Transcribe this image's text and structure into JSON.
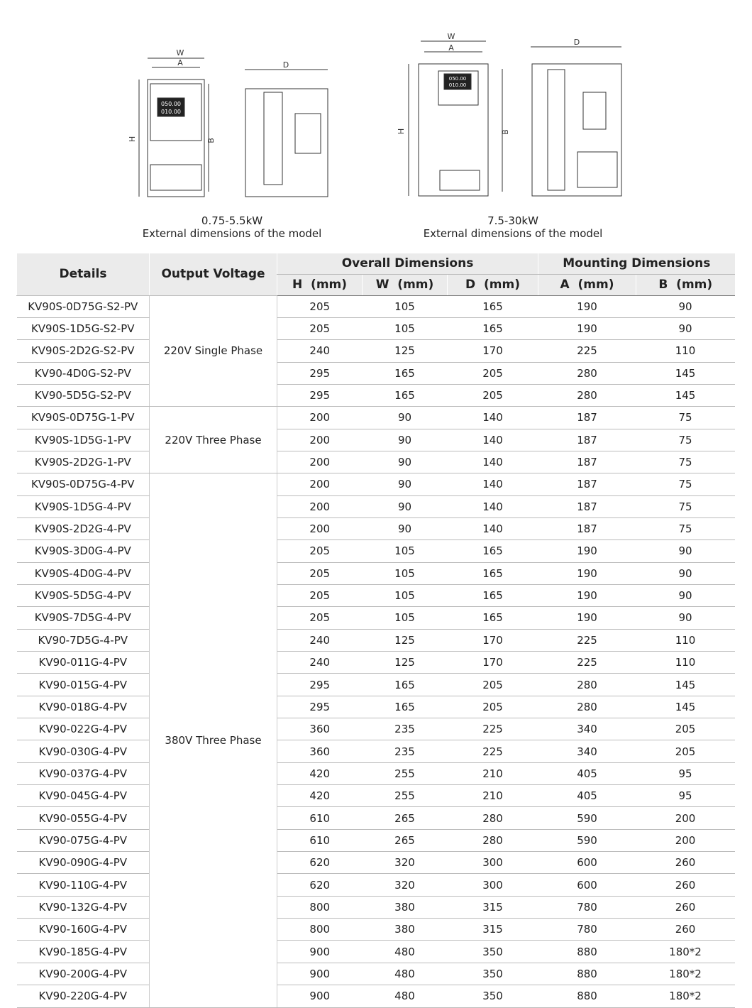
{
  "figures": [
    {
      "power": "0.75-5.5kW",
      "caption": "External dimensions of the model",
      "labels": {
        "W": "W",
        "A": "A",
        "H": "H",
        "B": "B",
        "D": "D"
      },
      "display": [
        "050.00",
        "010.00"
      ]
    },
    {
      "power": "7.5-30kW",
      "caption": "External dimensions of the model",
      "labels": {
        "W": "W",
        "A": "A",
        "H": "H",
        "B": "B",
        "D": "D"
      },
      "display": [
        "050.00",
        "010.00"
      ]
    }
  ],
  "table": {
    "header": {
      "details": "Details",
      "voltage": "Output Voltage",
      "overall": "Overall Dimensions",
      "mounting": "Mounting Dimensions",
      "columns": [
        "H  (mm)",
        "W  (mm)",
        "D  (mm)",
        "A  (mm)",
        "B  (mm)"
      ]
    },
    "groups": [
      {
        "voltage": "220V Single Phase",
        "rows": [
          [
            "KV90S-0D75G-S2-PV",
            205,
            105,
            165,
            190,
            90
          ],
          [
            "KV90S-1D5G-S2-PV",
            205,
            105,
            165,
            190,
            90
          ],
          [
            "KV90S-2D2G-S2-PV",
            240,
            125,
            170,
            225,
            110
          ],
          [
            "KV90-4D0G-S2-PV",
            295,
            165,
            205,
            280,
            145
          ],
          [
            "KV90-5D5G-S2-PV",
            295,
            165,
            205,
            280,
            145
          ]
        ]
      },
      {
        "voltage": "220V Three Phase",
        "rows": [
          [
            "KV90S-0D75G-1-PV",
            200,
            90,
            140,
            187,
            75
          ],
          [
            "KV90S-1D5G-1-PV",
            200,
            90,
            140,
            187,
            75
          ],
          [
            "KV90S-2D2G-1-PV",
            200,
            90,
            140,
            187,
            75
          ]
        ]
      },
      {
        "voltage": "380V Three Phase",
        "rows": [
          [
            "KV90S-0D75G-4-PV",
            200,
            90,
            140,
            187,
            75
          ],
          [
            "KV90S-1D5G-4-PV",
            200,
            90,
            140,
            187,
            75
          ],
          [
            "KV90S-2D2G-4-PV",
            200,
            90,
            140,
            187,
            75
          ],
          [
            "KV90S-3D0G-4-PV",
            205,
            105,
            165,
            190,
            90
          ],
          [
            "KV90S-4D0G-4-PV",
            205,
            105,
            165,
            190,
            90
          ],
          [
            "KV90S-5D5G-4-PV",
            205,
            105,
            165,
            190,
            90
          ],
          [
            "KV90S-7D5G-4-PV",
            205,
            105,
            165,
            190,
            90
          ],
          [
            "KV90-7D5G-4-PV",
            240,
            125,
            170,
            225,
            110
          ],
          [
            "KV90-011G-4-PV",
            240,
            125,
            170,
            225,
            110
          ],
          [
            "KV90-015G-4-PV",
            295,
            165,
            205,
            280,
            145
          ],
          [
            "KV90-018G-4-PV",
            295,
            165,
            205,
            280,
            145
          ],
          [
            "KV90-022G-4-PV",
            360,
            235,
            225,
            340,
            205
          ],
          [
            "KV90-030G-4-PV",
            360,
            235,
            225,
            340,
            205
          ],
          [
            "KV90-037G-4-PV",
            420,
            255,
            210,
            405,
            95
          ],
          [
            "KV90-045G-4-PV",
            420,
            255,
            210,
            405,
            95
          ],
          [
            "KV90-055G-4-PV",
            610,
            265,
            280,
            590,
            200
          ],
          [
            "KV90-075G-4-PV",
            610,
            265,
            280,
            590,
            200
          ],
          [
            "KV90-090G-4-PV",
            620,
            320,
            300,
            600,
            260
          ],
          [
            "KV90-110G-4-PV",
            620,
            320,
            300,
            600,
            260
          ],
          [
            "KV90-132G-4-PV",
            800,
            380,
            315,
            780,
            260
          ],
          [
            "KV90-160G-4-PV",
            800,
            380,
            315,
            780,
            260
          ],
          [
            "KV90-185G-4-PV",
            900,
            480,
            350,
            880,
            "180*2"
          ],
          [
            "KV90-200G-4-PV",
            900,
            480,
            350,
            880,
            "180*2"
          ],
          [
            "KV90-220G-4-PV",
            900,
            480,
            350,
            880,
            "180*2"
          ]
        ]
      }
    ]
  }
}
